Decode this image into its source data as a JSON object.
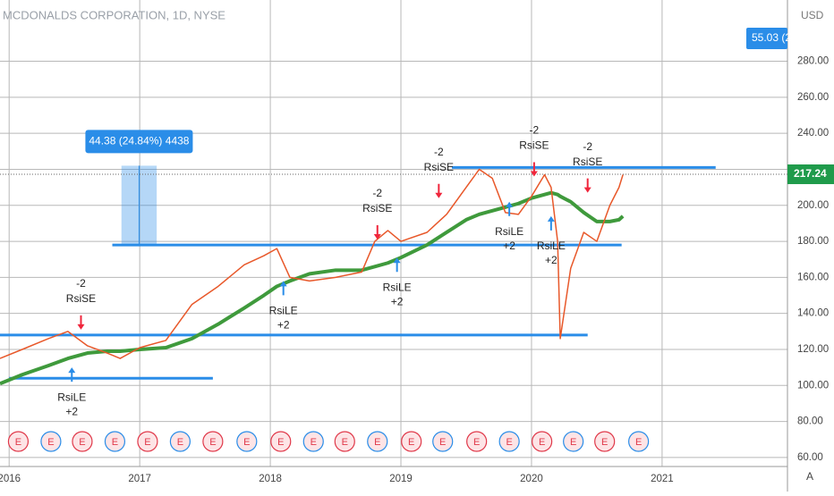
{
  "chart_data": {
    "type": "line",
    "title": "MCDONALDS CORPORATION, 1D, NYSE",
    "currency": "USD",
    "indicator_value": "55.03 (2",
    "last_price": 217.24,
    "scale_mode": "A",
    "x": [
      2015.93,
      2016.1,
      2016.3,
      2016.45,
      2016.6,
      2016.75,
      2016.85,
      2017.0,
      2017.2,
      2017.4,
      2017.6,
      2017.8,
      2017.95,
      2018.05,
      2018.15,
      2018.3,
      2018.5,
      2018.7,
      2018.8,
      2018.9,
      2019.0,
      2019.2,
      2019.35,
      2019.5,
      2019.6,
      2019.7,
      2019.8,
      2019.9,
      2020.0,
      2020.1,
      2020.15,
      2020.2,
      2020.22,
      2020.3,
      2020.4,
      2020.5,
      2020.6,
      2020.67,
      2020.7
    ],
    "series": [
      {
        "name": "Price",
        "color": "#e8582a",
        "width": 1.5,
        "values": [
          115,
          120,
          126,
          130,
          122,
          118,
          115,
          121,
          125,
          145,
          155,
          167,
          172,
          176,
          160,
          158,
          160,
          163,
          180,
          186,
          180,
          185,
          195,
          210,
          220,
          215,
          196,
          195,
          205,
          217,
          210,
          180,
          126,
          165,
          185,
          180,
          200,
          210,
          217
        ]
      },
      {
        "name": "MA",
        "color": "#3f9a3c",
        "width": 4,
        "values": [
          101,
          106,
          111,
          115,
          118,
          119,
          119,
          120,
          121,
          126,
          134,
          143,
          150,
          155,
          158,
          162,
          164,
          164,
          166,
          168,
          171,
          178,
          185,
          192,
          195,
          197,
          199,
          201,
          204,
          206,
          207,
          206,
          205,
          202,
          196,
          191,
          191,
          192,
          194
        ]
      }
    ],
    "levels": [
      {
        "value": 128,
        "x": [
          2015.93,
          2020.43
        ]
      },
      {
        "value": 104,
        "x": [
          2016.0,
          2017.56
        ]
      },
      {
        "value": 178,
        "x": [
          2016.79,
          2020.69
        ]
      },
      {
        "value": 221,
        "x": [
          2019.39,
          2021.41
        ]
      }
    ],
    "measure": {
      "label": "44.38 (24.84%) 4438",
      "from": 178,
      "to": 222,
      "x": [
        2016.86,
        2017.13
      ]
    },
    "signals": [
      {
        "kind": "RsiLE",
        "qty": "+2",
        "x": 2016.48,
        "price": 110
      },
      {
        "kind": "RsiSE",
        "qty": "-2",
        "x": 2016.55,
        "price": 131
      },
      {
        "kind": "RsiLE",
        "qty": "+2",
        "x": 2018.1,
        "price": 158
      },
      {
        "kind": "RsiSE",
        "qty": "-2",
        "x": 2018.82,
        "price": 181
      },
      {
        "kind": "RsiLE",
        "qty": "+2",
        "x": 2018.97,
        "price": 171
      },
      {
        "kind": "RsiSE",
        "qty": "-2",
        "x": 2019.29,
        "price": 204
      },
      {
        "kind": "RsiLE",
        "qty": "+2",
        "x": 2019.83,
        "price": 202
      },
      {
        "kind": "RsiSE",
        "qty": "-2",
        "x": 2020.02,
        "price": 216
      },
      {
        "kind": "RsiLE",
        "qty": "+2",
        "x": 2020.15,
        "price": 194
      },
      {
        "kind": "RsiSE",
        "qty": "-2",
        "x": 2020.43,
        "price": 207
      }
    ],
    "earnings": {
      "label": "E",
      "x": [
        2016.07,
        2016.32,
        2016.56,
        2016.81,
        2017.06,
        2017.31,
        2017.56,
        2017.82,
        2018.08,
        2018.33,
        2018.57,
        2018.82,
        2019.08,
        2019.32,
        2019.58,
        2019.83,
        2020.08,
        2020.32,
        2020.56,
        2020.82
      ]
    },
    "xlim": [
      2015.93,
      2021.96
    ],
    "xticks": [
      2016,
      2017,
      2018,
      2019,
      2020,
      2021
    ],
    "ylim": [
      55,
      314
    ],
    "yticks": [
      {
        "value": 60,
        "label": "60.00"
      },
      {
        "value": 80,
        "label": "80.00"
      },
      {
        "value": 100,
        "label": "100.00"
      },
      {
        "value": 120,
        "label": "120.00"
      },
      {
        "value": 140,
        "label": "140.00"
      },
      {
        "value": 160,
        "label": "160.00"
      },
      {
        "value": 180,
        "label": "180.00"
      },
      {
        "value": 200,
        "label": "200.00"
      },
      {
        "value": 220,
        "label": "220.00"
      },
      {
        "value": 240,
        "label": "240.00"
      },
      {
        "value": 260,
        "label": "260.00"
      },
      {
        "value": 280,
        "label": "280.00"
      }
    ],
    "grid": true
  }
}
